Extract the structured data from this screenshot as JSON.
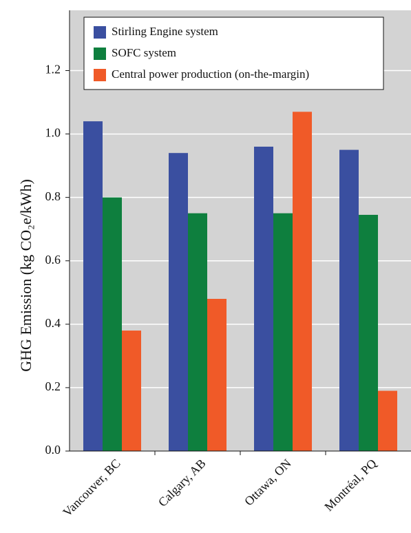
{
  "chart_data": {
    "type": "bar",
    "y_label": "GHG Emission (kg CO₂e/kWh)",
    "categories": [
      "Vancouver, BC",
      "Calgary, AB",
      "Ottawa, ON",
      "Montréal, PQ"
    ],
    "series": [
      {
        "name": "Stirling Engine system",
        "color": "#3a4fa0",
        "values": [
          1.04,
          0.94,
          0.96,
          0.95
        ]
      },
      {
        "name": "SOFC system",
        "color": "#0e7f3e",
        "values": [
          0.8,
          0.75,
          0.75,
          0.745
        ]
      },
      {
        "name": "Central power production (on-the-margin)",
        "color": "#f05a28",
        "values": [
          0.38,
          0.48,
          1.07,
          0.19
        ]
      }
    ],
    "ylim": [
      0,
      1.39
    ],
    "yticks": [
      {
        "value": 0,
        "label": "0.0"
      },
      0.2,
      0.4,
      0.6,
      0.8,
      {
        "value": 1,
        "label": "1.0"
      },
      1.2
    ],
    "grid": true
  }
}
